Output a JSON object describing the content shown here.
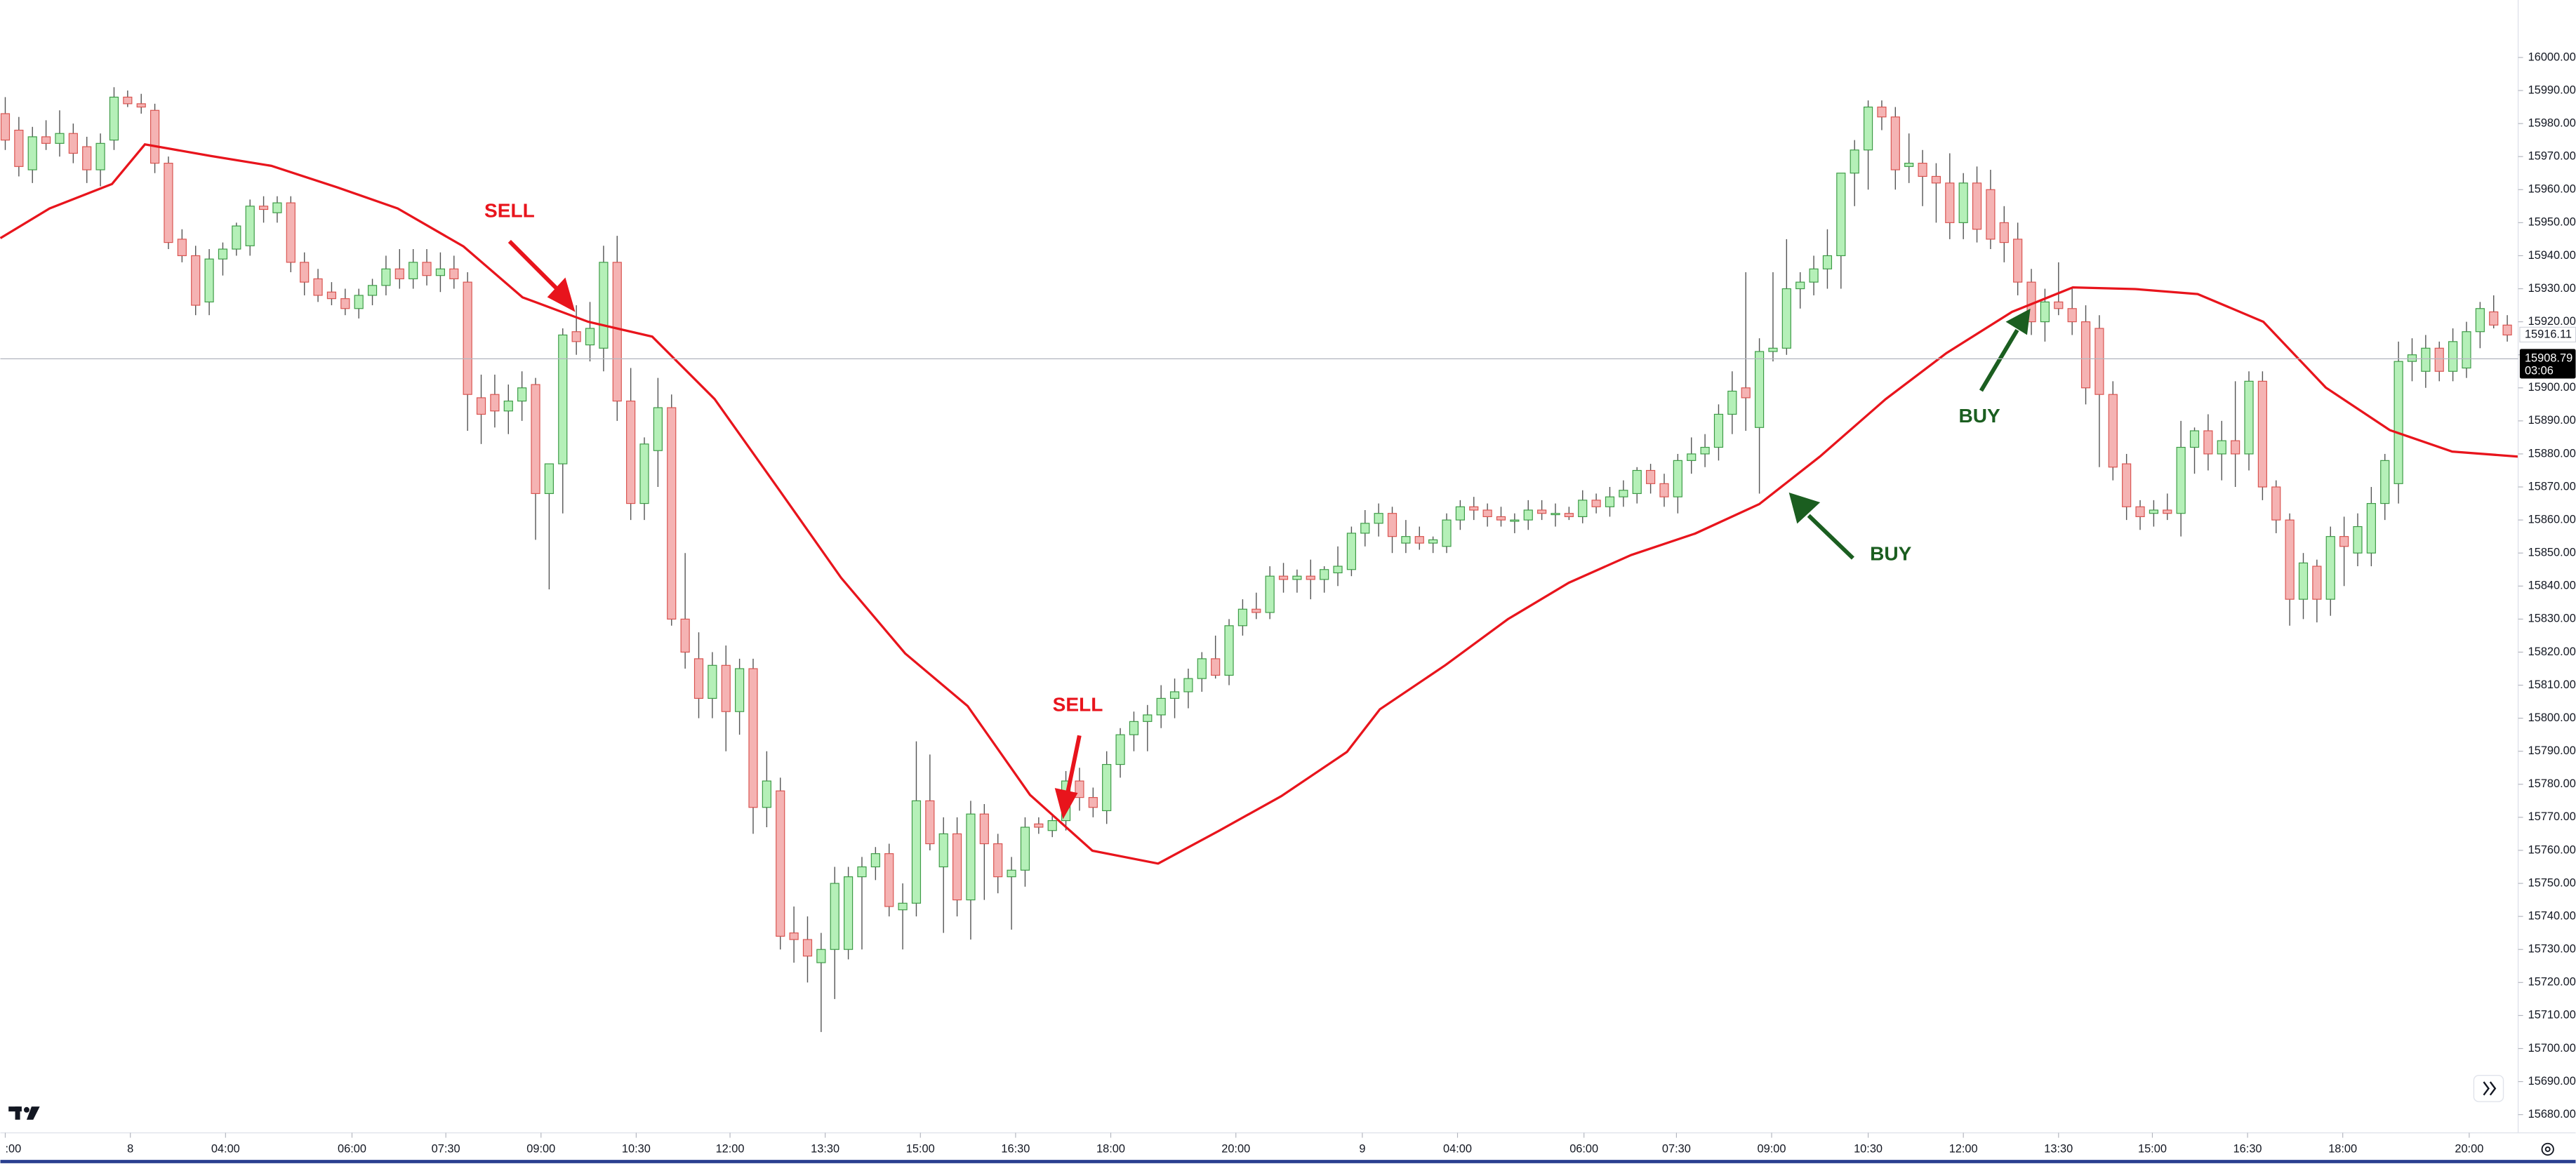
{
  "chart_data": {
    "type": "candlestick",
    "annotations": [
      "SELL",
      "SELL",
      "BUY",
      "BUY"
    ],
    "open": [
      15983,
      15978,
      15966,
      15976,
      15974,
      15977,
      15973,
      15966,
      15975,
      15988,
      15986,
      15984,
      15968,
      15945,
      15940,
      15926,
      15939,
      15942,
      15943,
      15955,
      15953,
      15956,
      15938,
      15933,
      15929,
      15927,
      15924,
      15928,
      15931,
      15936,
      15933,
      15938,
      15934,
      15936,
      15932,
      15897,
      15898,
      15893,
      15896,
      15901,
      15868,
      15877,
      15917,
      15913,
      15912,
      15938,
      15896,
      15865,
      15881,
      15894,
      15830,
      15818,
      15806,
      15816,
      15802,
      15815,
      15773,
      15778,
      15735,
      15733,
      15726,
      15730,
      15730,
      15752,
      15755,
      15759,
      15742,
      15744,
      15775,
      15755,
      15765,
      15745,
      15771,
      15762,
      15752,
      15754,
      15768,
      15766,
      15769,
      15781,
      15776,
      15772,
      15786,
      15795,
      15799,
      15801,
      15806,
      15808,
      15812,
      15818,
      15813,
      15828,
      15833,
      15832,
      15843,
      15842,
      15843,
      15842,
      15844,
      15845,
      15856,
      15859,
      15862,
      15853,
      15855,
      15853,
      15852,
      15860,
      15864,
      15863,
      15861,
      15860,
      15860,
      15863,
      15862,
      15862,
      15861,
      15866,
      15864,
      15867,
      15868,
      15875,
      15871,
      15867,
      15878,
      15880,
      15882,
      15892,
      15900,
      15888,
      15911,
      15912,
      15930,
      15932,
      15936,
      15940,
      15965,
      15972,
      15985,
      15982,
      15967,
      15968,
      15964,
      15962,
      15950,
      15962,
      15960,
      15950,
      15945,
      15932,
      15920,
      15926,
      15924,
      15920,
      15918,
      15898,
      15877,
      15864,
      15862,
      15863,
      15862,
      15882,
      15887,
      15880,
      15884,
      15880,
      15902,
      15870,
      15860,
      15836,
      15846,
      15836,
      15855,
      15850,
      15850,
      15865,
      15871,
      15908,
      15905,
      15912,
      15905,
      15906,
      15917,
      15923,
      15919
    ],
    "high": [
      15988,
      15982,
      15979,
      15981,
      15984,
      15980,
      15976,
      15977,
      15991,
      15990,
      15989,
      15986,
      15970,
      15948,
      15943,
      15942,
      15944,
      15950,
      15957,
      15958,
      15958,
      15958,
      15941,
      15936,
      15932,
      15930,
      15930,
      15933,
      15940,
      15942,
      15942,
      15942,
      15941,
      15940,
      15935,
      15904,
      15904,
      15901,
      15905,
      15903,
      15875,
      15918,
      15925,
      15926,
      15943,
      15946,
      15906,
      15885,
      15903,
      15898,
      15850,
      15826,
      15820,
      15822,
      15818,
      15818,
      15790,
      15782,
      15743,
      15740,
      15735,
      15755,
      15755,
      15758,
      15761,
      15762,
      15750,
      15793,
      15789,
      15770,
      15770,
      15775,
      15774,
      15765,
      15758,
      15770,
      15770,
      15771,
      15784,
      15785,
      15779,
      15790,
      15797,
      15802,
      15804,
      15810,
      15812,
      15815,
      15820,
      15825,
      15830,
      15836,
      15838,
      15846,
      15847,
      15845,
      15848,
      15846,
      15852,
      15858,
      15863,
      15865,
      15864,
      15860,
      15858,
      15855,
      15862,
      15866,
      15867,
      15865,
      15864,
      15862,
      15866,
      15866,
      15865,
      15864,
      15869,
      15868,
      15870,
      15872,
      15876,
      15877,
      15874,
      15880,
      15885,
      15886,
      15895,
      15905,
      15935,
      15915,
      15935,
      15945,
      15935,
      15940,
      15948,
      15965,
      15975,
      15987,
      15987,
      15985,
      15977,
      15972,
      15968,
      15971,
      15965,
      15967,
      15966,
      15955,
      15950,
      15936,
      15930,
      15938,
      15930,
      15925,
      15922,
      15902,
      15880,
      15866,
      15866,
      15868,
      15890,
      15888,
      15892,
      15890,
      15902,
      15905,
      15905,
      15872,
      15862,
      15850,
      15848,
      15858,
      15861,
      15862,
      15870,
      15880,
      15914,
      15915,
      15916,
      15914,
      15918,
      15920,
      15926,
      15928,
      15922
    ],
    "low": [
      15972,
      15964,
      15962,
      15972,
      15970,
      15968,
      15962,
      15961,
      15972,
      15985,
      15983,
      15965,
      15942,
      15938,
      15922,
      15922,
      15934,
      15940,
      15940,
      15950,
      15950,
      15935,
      15928,
      15926,
      15925,
      15922,
      15921,
      15925,
      15928,
      15930,
      15930,
      15931,
      15929,
      15930,
      15887,
      15883,
      15888,
      15886,
      15890,
      15854,
      15839,
      15862,
      15910,
      15908,
      15905,
      15890,
      15860,
      15860,
      15870,
      15828,
      15815,
      15800,
      15800,
      15790,
      15795,
      15765,
      15767,
      15730,
      15726,
      15720,
      15705,
      15715,
      15727,
      15730,
      15751,
      15740,
      15730,
      15740,
      15760,
      15735,
      15740,
      15733,
      15745,
      15747,
      15736,
      15749,
      15765,
      15764,
      15766,
      15772,
      15770,
      15768,
      15782,
      15790,
      15790,
      15797,
      15800,
      15803,
      15808,
      15812,
      15810,
      15825,
      15830,
      15830,
      15838,
      15838,
      15836,
      15838,
      15840,
      15843,
      15852,
      15855,
      15850,
      15850,
      15851,
      15850,
      15850,
      15857,
      15860,
      15858,
      15858,
      15856,
      15857,
      15860,
      15858,
      15860,
      15859,
      15862,
      15861,
      15864,
      15865,
      15868,
      15864,
      15862,
      15874,
      15876,
      15878,
      15886,
      15887,
      15868,
      15908,
      15910,
      15924,
      15928,
      15930,
      15930,
      15955,
      15960,
      15978,
      15960,
      15962,
      15955,
      15950,
      15945,
      15945,
      15944,
      15942,
      15938,
      15928,
      15916,
      15914,
      15922,
      15916,
      15895,
      15876,
      15872,
      15860,
      15857,
      15858,
      15860,
      15855,
      15874,
      15875,
      15872,
      15870,
      15875,
      15866,
      15856,
      15828,
      15830,
      15829,
      15831,
      15840,
      15846,
      15846,
      15860,
      15865,
      15902,
      15900,
      15902,
      15902,
      15903,
      15912,
      15918,
      15914
    ],
    "close": [
      15975,
      15967,
      15976,
      15974,
      15977,
      15971,
      15966,
      15974,
      15988,
      15986,
      15985,
      15968,
      15944,
      15940,
      15925,
      15939,
      15942,
      15949,
      15955,
      15954,
      15956,
      15938,
      15932,
      15928,
      15927,
      15924,
      15928,
      15931,
      15936,
      15933,
      15938,
      15934,
      15936,
      15933,
      15898,
      15892,
      15893,
      15896,
      15900,
      15868,
      15877,
      15916,
      15914,
      15918,
      15938,
      15896,
      15865,
      15883,
      15894,
      15830,
      15820,
      15806,
      15816,
      15802,
      15815,
      15773,
      15781,
      15734,
      15733,
      15728,
      15730,
      15750,
      15752,
      15755,
      15759,
      15743,
      15744,
      15775,
      15762,
      15765,
      15745,
      15771,
      15762,
      15752,
      15754,
      15767,
      15767,
      15769,
      15781,
      15776,
      15773,
      15786,
      15795,
      15799,
      15801,
      15806,
      15808,
      15812,
      15818,
      15813,
      15828,
      15833,
      15832,
      15843,
      15842,
      15843,
      15842,
      15845,
      15846,
      15856,
      15859,
      15862,
      15855,
      15855,
      15853,
      15854,
      15860,
      15864,
      15863,
      15861,
      15860,
      15860,
      15863,
      15862,
      15862,
      15861,
      15866,
      15864,
      15867,
      15869,
      15875,
      15871,
      15867,
      15878,
      15880,
      15882,
      15892,
      15899,
      15897,
      15911,
      15912,
      15930,
      15932,
      15936,
      15940,
      15965,
      15972,
      15985,
      15982,
      15966,
      15968,
      15964,
      15962,
      15950,
      15962,
      15948,
      15945,
      15944,
      15932,
      15920,
      15926,
      15924,
      15920,
      15900,
      15898,
      15876,
      15864,
      15861,
      15863,
      15862,
      15882,
      15887,
      15880,
      15884,
      15880,
      15902,
      15870,
      15860,
      15836,
      15847,
      15836,
      15855,
      15852,
      15858,
      15865,
      15878,
      15908,
      15910,
      15912,
      15905,
      15914,
      15917,
      15924,
      15919,
      15916
    ],
    "up_color": "#b5f0b8",
    "up_border": "#3c9a45",
    "down_color": "#f5b3b3",
    "down_border": "#d9534f",
    "ma": {
      "color": "#e8141c",
      "x": [
        -0.36,
        3.26,
        7.85,
        10.27,
        15.1,
        19.57,
        24.4,
        28.86,
        33.7,
        38.04,
        42.87,
        47.58,
        52.17,
        56.88,
        61.47,
        66.18,
        70.77,
        75.36,
        79.95,
        84.78,
        89.25,
        93.84,
        98.67,
        101.09,
        105.92,
        110.51,
        114.98,
        119.57,
        124.28,
        128.99,
        133.45,
        138.29,
        142.75,
        147.58,
        152.05,
        156.64,
        161.23,
        166.06,
        170.65,
        175.36,
        179.95,
        184.78
      ],
      "values": [
        15945.3,
        15954.3,
        15961.7,
        15973.7,
        15970.2,
        15967.2,
        15960.7,
        15954.3,
        15942.8,
        15927.4,
        15920,
        15915.5,
        15896.6,
        15869.3,
        15842.5,
        15819.6,
        15803.7,
        15776.8,
        15759.9,
        15756,
        15765.9,
        15776.4,
        15789.8,
        15802.7,
        15816.1,
        15830,
        15841,
        15849.4,
        15855.9,
        15864.8,
        15879.2,
        15896.6,
        15910.5,
        15923,
        15930.4,
        15929.9,
        15928.4,
        15920,
        15900.1,
        15887.2,
        15880.7,
        15879.2
      ]
    },
    "last_price": 15908.79,
    "countdown": "03:06",
    "marker_price": 15916.11,
    "xlim": [
      -0.36,
      184.8
    ],
    "ylim": [
      15674.5,
      16017.4
    ],
    "xticks": [
      {
        "value": 0,
        "label": ":00"
      },
      {
        "value": 9.2,
        "label": "8"
      },
      {
        "value": 16.2,
        "label": "04:00"
      },
      {
        "value": 25.5,
        "label": "06:00"
      },
      {
        "value": 32.4,
        "label": "07:30"
      },
      {
        "value": 39.4,
        "label": "09:00"
      },
      {
        "value": 46.4,
        "label": "10:30"
      },
      {
        "value": 53.3,
        "label": "12:00"
      },
      {
        "value": 60.3,
        "label": "13:30"
      },
      {
        "value": 67.3,
        "label": "15:00"
      },
      {
        "value": 74.3,
        "label": "16:30"
      },
      {
        "value": 81.3,
        "label": "18:00"
      },
      {
        "value": 90.5,
        "label": "20:00"
      },
      {
        "value": 99.8,
        "label": "9"
      },
      {
        "value": 106.8,
        "label": "04:00"
      },
      {
        "value": 116.1,
        "label": "06:00"
      },
      {
        "value": 122.9,
        "label": "07:30"
      },
      {
        "value": 129.9,
        "label": "09:00"
      },
      {
        "value": 137,
        "label": "10:30"
      },
      {
        "value": 144,
        "label": "12:00"
      },
      {
        "value": 151,
        "label": "13:30"
      },
      {
        "value": 157.9,
        "label": "15:00"
      },
      {
        "value": 164.9,
        "label": "16:30"
      },
      {
        "value": 171.9,
        "label": "18:00"
      },
      {
        "value": 181.2,
        "label": "20:00"
      }
    ],
    "yticks": [
      {
        "value": 15680,
        "label": "15680.00"
      },
      {
        "value": 15690,
        "label": "15690.00"
      },
      {
        "value": 15700,
        "label": "15700.00"
      },
      {
        "value": 15710,
        "label": "15710.00"
      },
      {
        "value": 15720,
        "label": "15720.00"
      },
      {
        "value": 15730,
        "label": "15730.00"
      },
      {
        "value": 15740,
        "label": "15740.00"
      },
      {
        "value": 15750,
        "label": "15750.00"
      },
      {
        "value": 15760,
        "label": "15760.00"
      },
      {
        "value": 15770,
        "label": "15770.00"
      },
      {
        "value": 15780,
        "label": "15780.00"
      },
      {
        "value": 15790,
        "label": "15790.00"
      },
      {
        "value": 15800,
        "label": "15800.00"
      },
      {
        "value": 15810,
        "label": "15810.00"
      },
      {
        "value": 15820,
        "label": "15820.00"
      },
      {
        "value": 15830,
        "label": "15830.00"
      },
      {
        "value": 15840,
        "label": "15840.00"
      },
      {
        "value": 15850,
        "label": "15850.00"
      },
      {
        "value": 15860,
        "label": "15860.00"
      },
      {
        "value": 15870,
        "label": "15870.00"
      },
      {
        "value": 15880,
        "label": "15880.00"
      },
      {
        "value": 15890,
        "label": "15890.00"
      },
      {
        "value": 15900,
        "label": "15900.00"
      },
      {
        "value": 15910,
        "label": "15910.00"
      },
      {
        "value": 15920,
        "label": "15920.00"
      },
      {
        "value": 15930,
        "label": "15930.00"
      },
      {
        "value": 15940,
        "label": "15940.00"
      },
      {
        "value": 15950,
        "label": "15950.00"
      },
      {
        "value": 15960,
        "label": "15960.00"
      },
      {
        "value": 15970,
        "label": "15970.00"
      },
      {
        "value": 15980,
        "label": "15980.00"
      },
      {
        "value": 15990,
        "label": "15990.00"
      },
      {
        "value": 16000,
        "label": "16000.00"
      }
    ],
    "grid": false
  }
}
